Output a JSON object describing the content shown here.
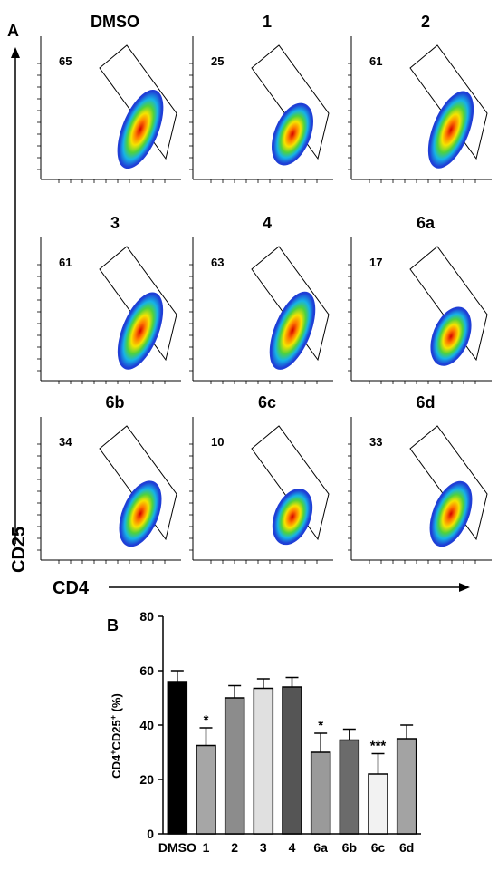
{
  "panel_a": {
    "letter": "A",
    "y_axis_label": "CD25",
    "x_axis_label": "CD4",
    "plots": [
      {
        "title": "DMSO",
        "gate_percent": "65"
      },
      {
        "title": "1",
        "gate_percent": "25"
      },
      {
        "title": "2",
        "gate_percent": "61"
      },
      {
        "title": "3",
        "gate_percent": "61"
      },
      {
        "title": "4",
        "gate_percent": "63"
      },
      {
        "title": "6a",
        "gate_percent": "17"
      },
      {
        "title": "6b",
        "gate_percent": "34"
      },
      {
        "title": "6c",
        "gate_percent": "10"
      },
      {
        "title": "6d",
        "gate_percent": "33"
      }
    ]
  },
  "panel_b": {
    "letter": "B"
  },
  "chart_data": {
    "type": "bar",
    "ylabel": "CD4+CD25+ (%)",
    "ylim": [
      0,
      80
    ],
    "yticks": [
      0,
      20,
      40,
      60,
      80
    ],
    "categories": [
      "DMSO",
      "1",
      "2",
      "3",
      "4",
      "6a",
      "6b",
      "6c",
      "6d"
    ],
    "values": [
      56,
      32.5,
      50,
      53.5,
      54,
      30,
      34.5,
      22,
      35
    ],
    "errors": [
      4,
      6.5,
      4.5,
      3.5,
      3.5,
      7,
      4,
      7.5,
      5
    ],
    "significance": [
      "",
      "*",
      "",
      "",
      "",
      "*",
      "",
      "***",
      ""
    ],
    "bar_colors": [
      "#000000",
      "#a6a6a6",
      "#8c8c8c",
      "#e0e0e0",
      "#555555",
      "#9a9a9a",
      "#6b6b6b",
      "#f2f2f2",
      "#a3a3a3"
    ]
  }
}
